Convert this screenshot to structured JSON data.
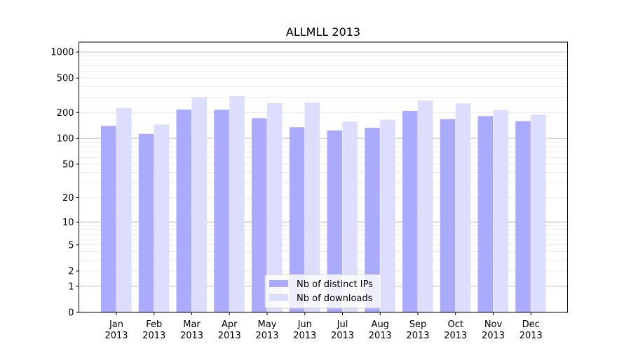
{
  "chart_data": {
    "type": "bar",
    "title": "ALLMLL 2013",
    "xlabel": "",
    "ylabel": "",
    "y_scale": "symlog",
    "ylim": [
      0,
      1300
    ],
    "y_ticks": [
      0,
      1,
      2,
      5,
      10,
      20,
      50,
      100,
      200,
      500,
      1000
    ],
    "grid": "horizontal",
    "legend_position": "bottom-center",
    "categories": [
      {
        "month": "Jan",
        "year": "2013"
      },
      {
        "month": "Feb",
        "year": "2013"
      },
      {
        "month": "Mar",
        "year": "2013"
      },
      {
        "month": "Apr",
        "year": "2013"
      },
      {
        "month": "May",
        "year": "2013"
      },
      {
        "month": "Jun",
        "year": "2013"
      },
      {
        "month": "Jul",
        "year": "2013"
      },
      {
        "month": "Aug",
        "year": "2013"
      },
      {
        "month": "Sep",
        "year": "2013"
      },
      {
        "month": "Oct",
        "year": "2013"
      },
      {
        "month": "Nov",
        "year": "2013"
      },
      {
        "month": "Dec",
        "year": "2013"
      }
    ],
    "series": [
      {
        "name": "Nb of distinct IPs",
        "color": "#aaaaff",
        "values": [
          140,
          113,
          216,
          215,
          172,
          135,
          124,
          133,
          209,
          168,
          182,
          159
        ]
      },
      {
        "name": "Nb of downloads",
        "color": "#ddddff",
        "values": [
          227,
          145,
          302,
          310,
          256,
          262,
          157,
          165,
          275,
          255,
          213,
          188
        ]
      }
    ]
  }
}
